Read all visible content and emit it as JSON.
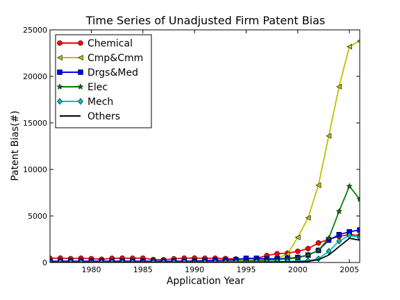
{
  "chart_data": {
    "type": "line",
    "title": "Time Series of Unadjusted Firm Patent Bias",
    "xlabel": "Application Year",
    "ylabel": "Patent Bias(#)",
    "xlim": [
      1976,
      2006
    ],
    "ylim": [
      0,
      25000
    ],
    "xticks": [
      1980,
      1985,
      1990,
      1995,
      2000,
      2005
    ],
    "yticks": [
      0,
      5000,
      10000,
      15000,
      20000,
      25000
    ],
    "x": [
      1976,
      1977,
      1978,
      1979,
      1980,
      1981,
      1982,
      1983,
      1984,
      1985,
      1986,
      1987,
      1988,
      1989,
      1990,
      1991,
      1992,
      1993,
      1994,
      1995,
      1996,
      1997,
      1998,
      1999,
      2000,
      2001,
      2002,
      2003,
      2004,
      2005,
      2006
    ],
    "legend_position": "top-left",
    "grid": false,
    "series": [
      {
        "name": "Chemical",
        "color": "#ff0000",
        "marker": "circle",
        "values": [
          450,
          480,
          420,
          460,
          420,
          350,
          450,
          470,
          460,
          470,
          320,
          300,
          400,
          470,
          480,
          460,
          460,
          430,
          380,
          400,
          450,
          750,
          950,
          1000,
          1200,
          1500,
          2100,
          2500,
          2800,
          3000,
          2900
        ]
      },
      {
        "name": "Cmp&Cmm",
        "color": "#bfbf00",
        "marker": "triangle-left",
        "values": [
          100,
          100,
          100,
          100,
          100,
          100,
          100,
          100,
          100,
          100,
          100,
          120,
          140,
          160,
          180,
          200,
          220,
          240,
          260,
          280,
          300,
          350,
          450,
          900,
          2700,
          4800,
          8300,
          13600,
          18900,
          23200,
          23800
        ]
      },
      {
        "name": "Drgs&Med",
        "color": "#0000ff",
        "marker": "square",
        "values": [
          150,
          150,
          150,
          150,
          150,
          150,
          150,
          150,
          150,
          150,
          150,
          150,
          150,
          150,
          150,
          200,
          250,
          250,
          300,
          450,
          450,
          400,
          400,
          450,
          550,
          800,
          1300,
          2400,
          3000,
          3300,
          3500
        ]
      },
      {
        "name": "Elec",
        "color": "#008000",
        "marker": "star",
        "values": [
          50,
          50,
          50,
          50,
          50,
          50,
          50,
          50,
          50,
          50,
          50,
          50,
          50,
          50,
          60,
          70,
          80,
          100,
          120,
          150,
          200,
          250,
          300,
          400,
          500,
          800,
          1300,
          2600,
          5500,
          8200,
          6800
        ]
      },
      {
        "name": "Mech",
        "color": "#00bfbf",
        "marker": "diamond",
        "values": [
          30,
          30,
          30,
          30,
          30,
          30,
          30,
          30,
          30,
          30,
          30,
          30,
          30,
          30,
          30,
          30,
          30,
          40,
          50,
          60,
          70,
          80,
          100,
          120,
          150,
          200,
          400,
          1200,
          2300,
          2900,
          2700
        ]
      },
      {
        "name": "Others",
        "color": "#000000",
        "marker": "none",
        "values": [
          20,
          20,
          20,
          20,
          20,
          20,
          20,
          20,
          20,
          20,
          20,
          20,
          20,
          20,
          20,
          20,
          20,
          20,
          20,
          20,
          30,
          40,
          50,
          60,
          80,
          120,
          300,
          800,
          1700,
          2600,
          2400
        ]
      }
    ]
  }
}
